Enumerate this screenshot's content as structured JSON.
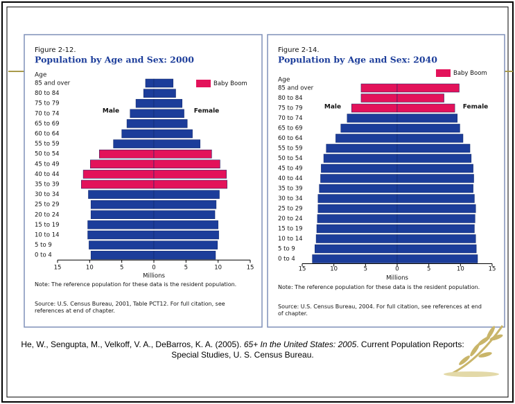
{
  "chart_data": [
    {
      "type": "pyramid",
      "figure_label": "Figure 2-12.",
      "title": "Population by Age and Sex: 2000",
      "y_label": "Age",
      "categories": [
        "85 and over",
        "80 to 84",
        "75 to 79",
        "70 to 74",
        "65 to 69",
        "60 to 64",
        "55 to 59",
        "50 to 54",
        "45 to 49",
        "40 to 44",
        "35 to 39",
        "30 to 34",
        "25 to 29",
        "20 to 24",
        "15 to 19",
        "10 to 14",
        "5 to 9",
        "0 to 4"
      ],
      "series": [
        {
          "name": "Male",
          "color": "#1c3d9a",
          "values": [
            1.3,
            1.6,
            2.8,
            3.7,
            4.2,
            5.0,
            6.3,
            8.5,
            9.9,
            11.0,
            11.3,
            10.2,
            9.8,
            9.8,
            10.3,
            10.3,
            10.1,
            9.8
          ]
        },
        {
          "name": "Female",
          "color": "#1c3d9a",
          "values": [
            3.0,
            3.4,
            4.4,
            4.7,
            5.2,
            6.0,
            7.2,
            9.0,
            10.3,
            11.3,
            11.4,
            10.2,
            9.7,
            9.5,
            10.0,
            10.1,
            9.9,
            9.6
          ]
        }
      ],
      "highlight": {
        "name": "Baby Boom",
        "color": "#e3125a",
        "categories": [
          "50 to 54",
          "45 to 49",
          "40 to 44",
          "35 to 39"
        ]
      },
      "xlim": [
        -15,
        15
      ],
      "xticks": [
        {
          "value": -15,
          "label": "15"
        },
        {
          "value": -10,
          "label": "10"
        },
        {
          "value": -5,
          "label": "5"
        },
        0,
        5,
        10,
        15
      ],
      "xlabel": "Millions",
      "note": "Note: The reference population for these data is the resident population.",
      "source": "Source: U.S. Census Bureau, 2001, Table PCT12. For full citation, see references at end of chapter."
    },
    {
      "type": "pyramid",
      "figure_label": "Figure 2-14.",
      "title": "Population by Age and Sex: 2040",
      "y_label": "Age",
      "categories": [
        "85 and over",
        "80 to 84",
        "75 to 79",
        "70 to 74",
        "65 to 69",
        "60 to 64",
        "55 to 59",
        "50 to 54",
        "45 to 49",
        "40 to 44",
        "35 to 39",
        "30 to 34",
        "25 to 29",
        "20 to 24",
        "15 to 19",
        "10 to 14",
        "5 to 9",
        "0 to 4"
      ],
      "series": [
        {
          "name": "Male",
          "color": "#1c3d9a",
          "values": [
            5.7,
            5.7,
            7.2,
            7.9,
            8.9,
            9.7,
            11.2,
            11.6,
            12.0,
            12.1,
            12.3,
            12.5,
            12.5,
            12.6,
            12.7,
            12.8,
            13.0,
            13.4
          ]
        },
        {
          "name": "Female",
          "color": "#1c3d9a",
          "values": [
            9.8,
            7.4,
            9.1,
            9.5,
            9.9,
            10.4,
            11.5,
            11.7,
            12.0,
            12.1,
            12.0,
            12.2,
            12.4,
            12.3,
            12.2,
            12.4,
            12.5,
            12.7
          ]
        }
      ],
      "highlight": {
        "name": "Baby Boom",
        "color": "#e3125a",
        "categories": [
          "85 and over",
          "80 to 84",
          "75 to 79"
        ]
      },
      "xlim": [
        -15,
        15
      ],
      "xticks": [
        {
          "value": -15,
          "label": "15"
        },
        {
          "value": -10,
          "label": "10"
        },
        {
          "value": -5,
          "label": "5"
        },
        0,
        5,
        10,
        15
      ],
      "xlabel": "Millions",
      "note": "Note: The reference population for these data is the resident population.",
      "source": "Source: U.S. Census Bureau, 2004. For full citation, see references at end of chapter."
    }
  ],
  "citation": {
    "before": "He, W., Sengupta, M., Velkoff, V. A., DeBarros, K. A. (2005). ",
    "italic": "65+ In the United States: 2005",
    "after": ". Current Population Reports: Special Studies,  U. S. Census Bureau."
  }
}
